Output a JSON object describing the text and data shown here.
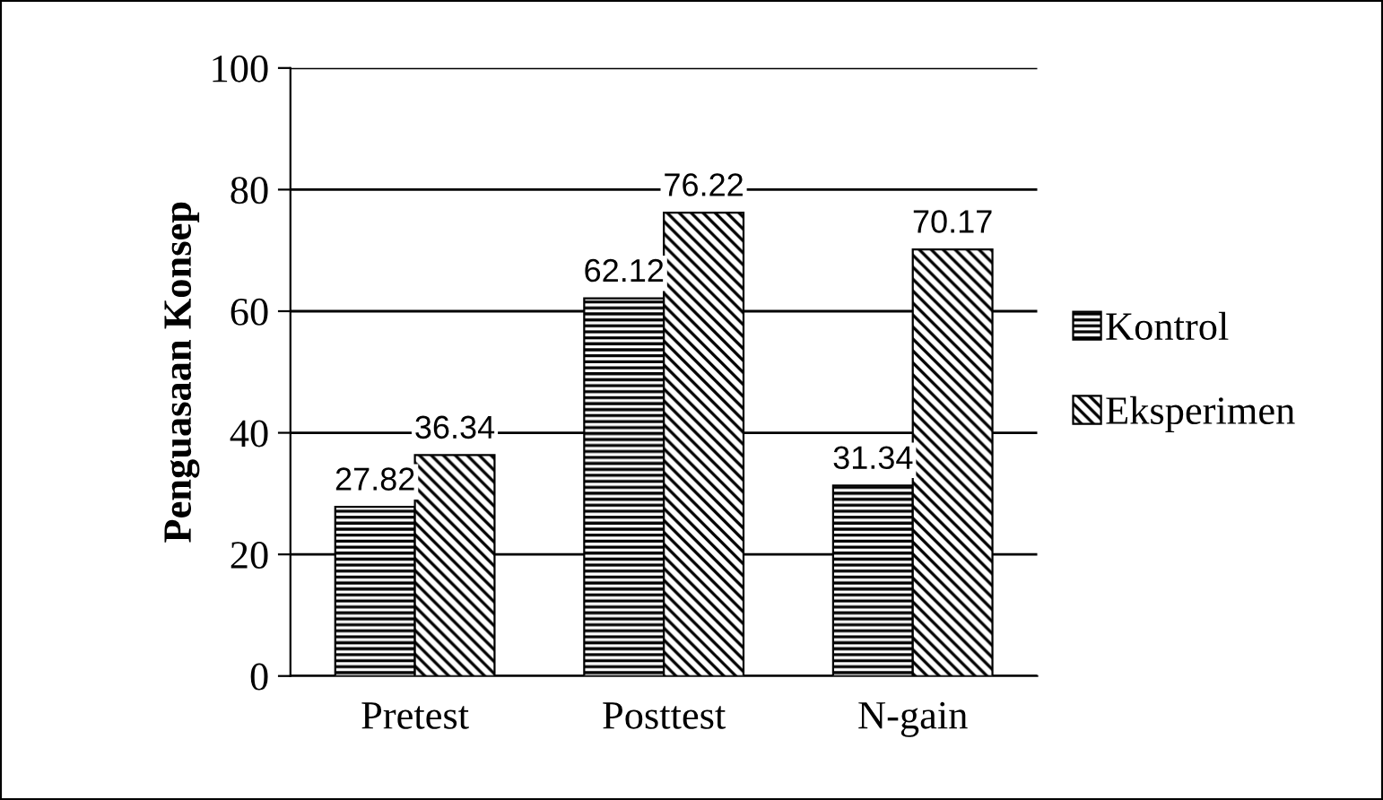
{
  "chart_data": {
    "type": "bar",
    "ylabel": "Penguasaan Konsep",
    "categories": [
      "Pretest",
      "Posttest",
      "N-gain"
    ],
    "series": [
      {
        "name": "Kontrol",
        "color": "#000000",
        "values": [
          27.82,
          62.12,
          31.34
        ]
      },
      {
        "name": "Eksperimen",
        "color": "#000000",
        "values": [
          36.34,
          76.22,
          70.17
        ]
      }
    ],
    "ylim": [
      0,
      100
    ],
    "yticks": [
      0,
      20,
      40,
      60,
      80,
      100
    ],
    "grid": "y",
    "legend": "right",
    "data_labels": true
  }
}
